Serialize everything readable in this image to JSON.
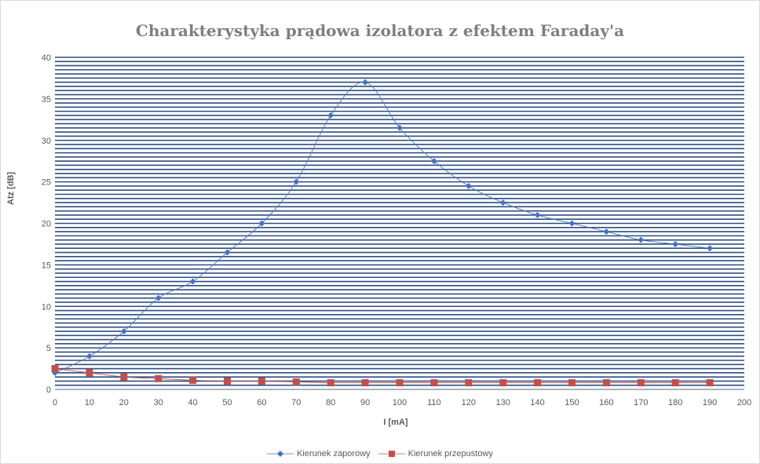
{
  "chart_data": {
    "type": "scatter",
    "title": "Charakterystyka prądowa izolatora z efektem Faraday'a",
    "xlabel": "I [mA]",
    "ylabel": "Atz [dB]",
    "xlim": [
      0,
      200
    ],
    "ylim": [
      0,
      40
    ],
    "xticks": [
      0,
      10,
      20,
      30,
      40,
      50,
      60,
      70,
      80,
      90,
      100,
      110,
      120,
      130,
      140,
      150,
      160,
      170,
      180,
      190,
      200
    ],
    "yticks": [
      0,
      5,
      10,
      15,
      20,
      25,
      30,
      35,
      40
    ],
    "grid": true,
    "smooth_lines": true,
    "legend_position": "bottom",
    "series": [
      {
        "name": "Kierunek zaporowy",
        "color": "#4472c4",
        "marker": "diamond",
        "x": [
          0,
          10,
          20,
          30,
          40,
          50,
          60,
          70,
          80,
          90,
          100,
          110,
          120,
          130,
          140,
          150,
          160,
          170,
          180,
          190
        ],
        "y": [
          2,
          4,
          7,
          11,
          13,
          16.5,
          20,
          25,
          33,
          37,
          31.5,
          27.5,
          24.5,
          22.5,
          21,
          20,
          19,
          18,
          17.5,
          17
        ]
      },
      {
        "name": "Kierunek przepustowy",
        "color": "#c0504d",
        "marker": "square",
        "x": [
          0,
          10,
          20,
          30,
          40,
          50,
          60,
          70,
          80,
          90,
          100,
          110,
          120,
          130,
          140,
          150,
          160,
          170,
          180,
          190
        ],
        "y": [
          2.5,
          2,
          1.5,
          1.3,
          1.1,
          1,
          1,
          0.9,
          0.8,
          0.8,
          0.8,
          0.8,
          0.8,
          0.8,
          0.8,
          0.8,
          0.8,
          0.8,
          0.8,
          0.8
        ]
      }
    ]
  }
}
